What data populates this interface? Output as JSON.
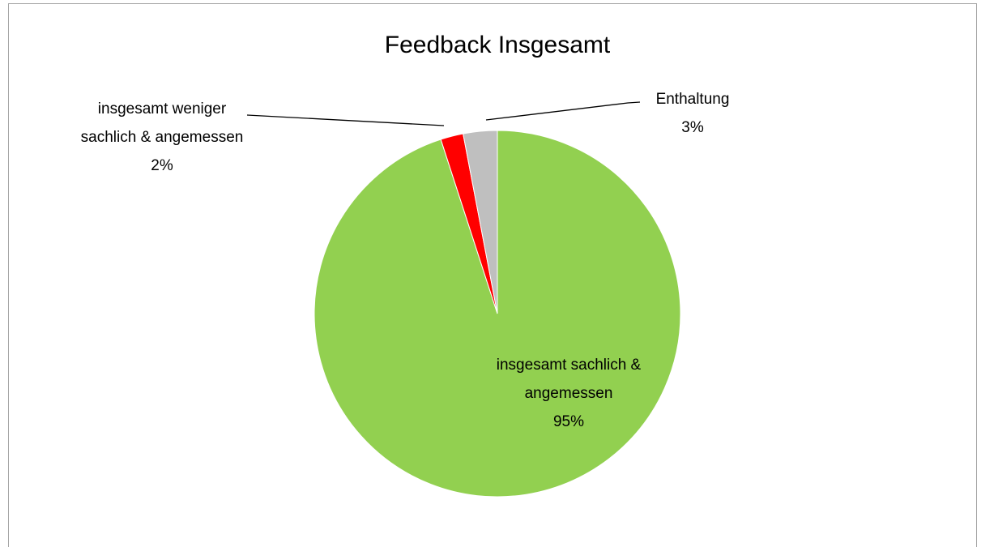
{
  "chart_data": {
    "type": "pie",
    "title": "Feedback Insgesamt",
    "categories": [
      "insgesamt sachlich & angemessen",
      "insgesamt weniger sachlich & angemessen",
      "Enthaltung"
    ],
    "values": [
      95,
      2,
      3
    ],
    "value_labels": [
      "95%",
      "2%",
      "3%"
    ],
    "colors": [
      "#92d050",
      "#ff0000",
      "#bfbfbf"
    ]
  }
}
